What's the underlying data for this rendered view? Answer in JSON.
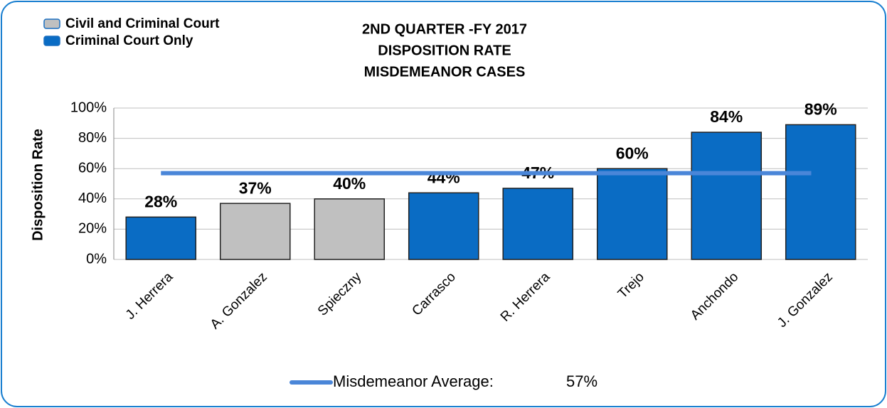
{
  "chart_data": {
    "type": "bar",
    "title_lines": [
      "2ND QUARTER -FY 2017",
      "DISPOSITION RATE",
      "MISDEMEANOR CASES"
    ],
    "y_label": "Disposition Rate",
    "legend": [
      {
        "name": "Civil and Criminal Court",
        "color": "#c0c0c0"
      },
      {
        "name": "Criminal Court Only",
        "color": "#0a6cc4"
      }
    ],
    "categories": [
      "J. Herrera",
      "A. Gonzalez",
      "Spieczny",
      "Carrasco",
      "R. Herrera",
      "Trejo",
      "Anchondo",
      "J. Gonzalez"
    ],
    "values": [
      28,
      37,
      40,
      44,
      47,
      60,
      84,
      89
    ],
    "value_labels": [
      "28%",
      "37%",
      "40%",
      "44%",
      "47%",
      "60%",
      "84%",
      "89%"
    ],
    "colors": [
      "#0a6cc4",
      "#c0c0c0",
      "#c0c0c0",
      "#0a6cc4",
      "#0a6cc4",
      "#0a6cc4",
      "#0a6cc4",
      "#0a6cc4"
    ],
    "average": {
      "name": "Misdemeanor Average:",
      "value": 57,
      "value_label": "57%",
      "color": "#4a86d8"
    },
    "ylim": [
      0,
      100
    ],
    "yticks": [
      {
        "value": 0,
        "label": "0%"
      },
      {
        "value": 20,
        "label": "20%"
      },
      {
        "value": 40,
        "label": "40%"
      },
      {
        "value": 60,
        "label": "60%"
      },
      {
        "value": 80,
        "label": "80%"
      },
      {
        "value": 100,
        "label": "100%"
      }
    ],
    "grid": true
  }
}
